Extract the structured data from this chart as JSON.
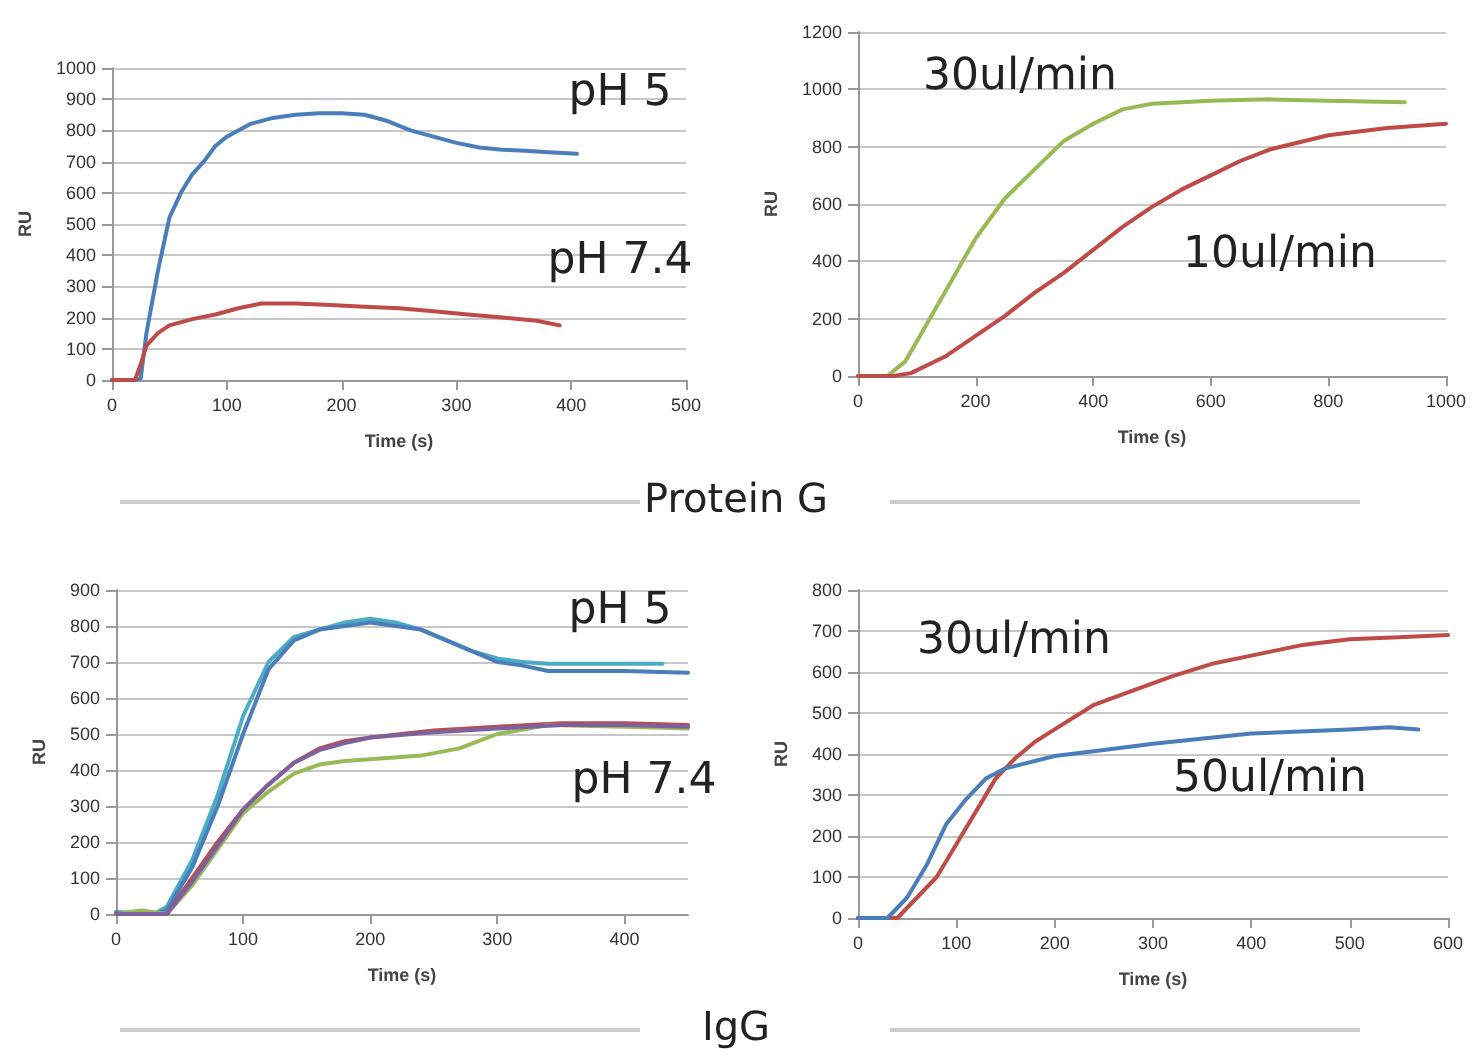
{
  "chart_data": [
    {
      "type": "line",
      "xlabel": "Time (s)",
      "ylabel": "RU",
      "xlim": [
        0,
        500
      ],
      "xticks": [
        0,
        100,
        200,
        300,
        400,
        500
      ],
      "ylim": [
        0,
        1000
      ],
      "yticks": [
        0,
        100,
        200,
        300,
        400,
        500,
        600,
        700,
        800,
        900,
        1000
      ],
      "grid": "y",
      "marker": "none",
      "line_style": "solid",
      "series": [
        {
          "color": "#4a7ebb",
          "x": [
            0,
            20,
            25,
            30,
            40,
            50,
            60,
            70,
            80,
            90,
            100,
            120,
            140,
            160,
            180,
            200,
            220,
            240,
            260,
            280,
            300,
            320,
            340,
            360,
            380,
            405
          ],
          "values": [
            0,
            0,
            5,
            150,
            350,
            520,
            600,
            660,
            700,
            750,
            780,
            820,
            840,
            850,
            855,
            855,
            850,
            830,
            800,
            780,
            760,
            745,
            738,
            735,
            730,
            725
          ]
        },
        {
          "color": "#be4b48",
          "x": [
            0,
            20,
            25,
            30,
            40,
            50,
            70,
            90,
            110,
            130,
            160,
            190,
            220,
            250,
            280,
            310,
            340,
            370,
            390
          ],
          "values": [
            0,
            0,
            50,
            110,
            150,
            175,
            195,
            210,
            230,
            245,
            245,
            240,
            235,
            230,
            220,
            210,
            200,
            190,
            175
          ]
        }
      ],
      "annotations": [
        "pH 5",
        "pH 7.4",
        "Protein G"
      ]
    },
    {
      "type": "line",
      "xlabel": "Time (s)",
      "ylabel": "RU",
      "xlim": [
        0,
        1000
      ],
      "xticks": [
        0,
        200,
        400,
        600,
        800,
        1000
      ],
      "ylim": [
        0,
        1200
      ],
      "yticks": [
        0,
        200,
        400,
        600,
        800,
        1000,
        1200
      ],
      "grid": "y",
      "marker": "none",
      "line_style": "solid",
      "series": [
        {
          "color": "#98b954",
          "x": [
            0,
            50,
            80,
            100,
            150,
            200,
            250,
            300,
            350,
            400,
            450,
            500,
            600,
            700,
            800,
            930
          ],
          "values": [
            0,
            0,
            50,
            120,
            300,
            480,
            620,
            720,
            820,
            880,
            930,
            950,
            960,
            965,
            960,
            955
          ]
        },
        {
          "color": "#be4b48",
          "x": [
            0,
            60,
            90,
            150,
            200,
            250,
            300,
            350,
            400,
            450,
            500,
            550,
            600,
            650,
            700,
            800,
            900,
            1000
          ],
          "values": [
            0,
            0,
            10,
            70,
            140,
            210,
            290,
            360,
            440,
            520,
            590,
            650,
            700,
            750,
            790,
            840,
            865,
            880
          ]
        }
      ],
      "annotations": [
        "30ul/min",
        "10ul/min"
      ]
    },
    {
      "type": "line",
      "xlabel": "Time (s)",
      "ylabel": "RU",
      "xlim": [
        0,
        450
      ],
      "xticks": [
        0,
        100,
        200,
        300,
        400
      ],
      "ylim": [
        0,
        900
      ],
      "yticks": [
        0,
        100,
        200,
        300,
        400,
        500,
        600,
        700,
        800,
        900
      ],
      "grid": "y",
      "marker": "none",
      "line_style": "solid",
      "series": [
        {
          "color": "#4bacc6",
          "x": [
            0,
            30,
            40,
            60,
            80,
            100,
            120,
            140,
            160,
            180,
            200,
            220,
            240,
            260,
            280,
            300,
            320,
            340,
            360,
            400,
            430
          ],
          "values": [
            5,
            0,
            20,
            150,
            330,
            550,
            700,
            770,
            790,
            810,
            820,
            810,
            790,
            760,
            730,
            710,
            700,
            695,
            695,
            695,
            695
          ]
        },
        {
          "color": "#4a7ebb",
          "x": [
            0,
            30,
            40,
            60,
            80,
            100,
            120,
            140,
            160,
            180,
            200,
            220,
            240,
            260,
            280,
            300,
            320,
            340,
            400,
            450
          ],
          "values": [
            5,
            0,
            10,
            130,
            300,
            500,
            680,
            760,
            790,
            800,
            810,
            800,
            790,
            760,
            730,
            700,
            690,
            675,
            675,
            670
          ]
        },
        {
          "color": "#be4b48",
          "x": [
            0,
            40,
            60,
            80,
            100,
            120,
            140,
            160,
            180,
            200,
            250,
            300,
            350,
            400,
            450
          ],
          "values": [
            0,
            0,
            100,
            200,
            290,
            360,
            420,
            460,
            480,
            490,
            510,
            520,
            530,
            530,
            525
          ]
        },
        {
          "color": "#98b954",
          "x": [
            0,
            20,
            40,
            60,
            80,
            100,
            120,
            140,
            160,
            180,
            200,
            240,
            270,
            300,
            340,
            400,
            450
          ],
          "values": [
            0,
            10,
            0,
            80,
            180,
            280,
            340,
            390,
            415,
            425,
            430,
            440,
            460,
            500,
            525,
            520,
            515
          ]
        },
        {
          "color": "#7d60a0",
          "x": [
            0,
            40,
            60,
            80,
            100,
            120,
            140,
            160,
            180,
            200,
            250,
            300,
            350,
            400,
            450
          ],
          "values": [
            0,
            0,
            90,
            190,
            290,
            360,
            420,
            455,
            475,
            490,
            505,
            515,
            525,
            525,
            520
          ]
        }
      ],
      "annotations": [
        "pH 5",
        "pH 7.4",
        "IgG"
      ]
    },
    {
      "type": "line",
      "xlabel": "Time (s)",
      "ylabel": "RU",
      "xlim": [
        0,
        600
      ],
      "xticks": [
        0,
        100,
        200,
        300,
        400,
        500,
        600
      ],
      "ylim": [
        0,
        800
      ],
      "yticks": [
        0,
        100,
        200,
        300,
        400,
        500,
        600,
        700,
        800
      ],
      "grid": "y",
      "marker": "none",
      "line_style": "solid",
      "series": [
        {
          "color": "#be4b48",
          "x": [
            0,
            40,
            60,
            80,
            100,
            120,
            140,
            160,
            180,
            200,
            240,
            280,
            320,
            360,
            400,
            450,
            500,
            550,
            600
          ],
          "values": [
            0,
            0,
            50,
            100,
            180,
            260,
            340,
            390,
            430,
            460,
            520,
            555,
            590,
            620,
            640,
            665,
            680,
            685,
            690
          ]
        },
        {
          "color": "#4a7ebb",
          "x": [
            0,
            30,
            50,
            70,
            90,
            110,
            130,
            150,
            200,
            250,
            300,
            400,
            500,
            540,
            570
          ],
          "values": [
            0,
            0,
            50,
            130,
            230,
            290,
            340,
            365,
            395,
            410,
            425,
            450,
            460,
            465,
            460
          ]
        }
      ],
      "annotations": [
        "30ul/min",
        "50ul/min"
      ]
    }
  ]
}
